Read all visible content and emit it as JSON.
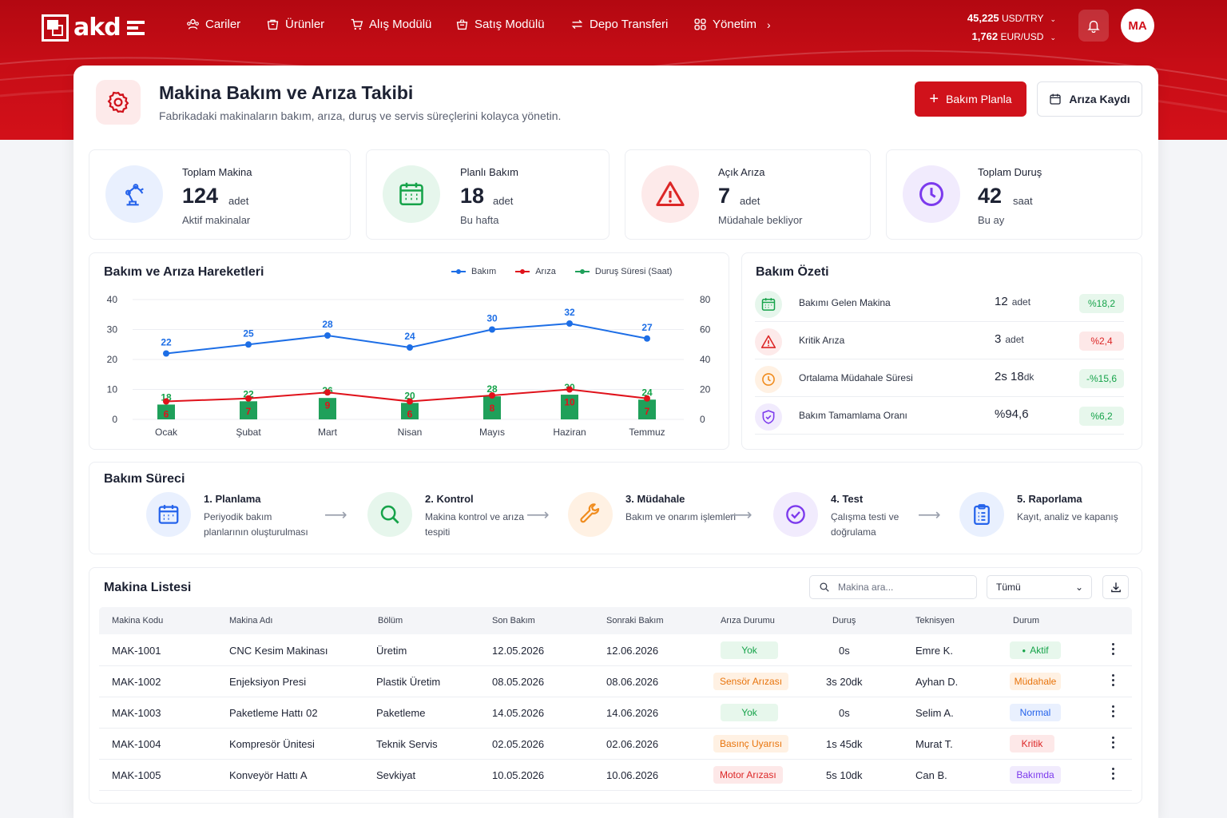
{
  "brand": {
    "logo_text": "akd"
  },
  "nav": [
    {
      "label": "Cariler",
      "icon": "users-icon"
    },
    {
      "label": "Ürünler",
      "icon": "box-icon"
    },
    {
      "label": "Alış Modülü",
      "icon": "cart-icon"
    },
    {
      "label": "Satış Modülü",
      "icon": "basket-icon"
    },
    {
      "label": "Depo Transferi",
      "icon": "transfer-icon"
    },
    {
      "label": "Yönetim",
      "icon": "grid-icon"
    }
  ],
  "currency": {
    "usd_value": "45,225",
    "usd_label": "USD/TRY",
    "eur_value": "1,762",
    "eur_label": "EUR/USD"
  },
  "user": {
    "initials": "MA"
  },
  "page": {
    "title": "Makina Bakım ve Arıza Takibi",
    "subtitle": "Fabrikadaki makinaların bakım, arıza, duruş ve servis süreçlerini kolayca yönetin.",
    "primary_button": "Bakım Planla",
    "secondary_button": "Arıza Kaydı"
  },
  "kpis": [
    {
      "label": "Toplam Makina",
      "value": "124",
      "unit": "adet",
      "sub": "Aktif makinalar",
      "color": "#2563eb",
      "icon": "robot-arm-icon"
    },
    {
      "label": "Planlı Bakım",
      "value": "18",
      "unit": "adet",
      "sub": "Bu hafta",
      "color": "#16a34a",
      "icon": "calendar-icon"
    },
    {
      "label": "Açık Arıza",
      "value": "7",
      "unit": "adet",
      "sub": "Müdahale bekliyor",
      "color": "#dc2626",
      "icon": "warning-icon"
    },
    {
      "label": "Toplam Duruş",
      "value": "42",
      "unit": "saat",
      "sub": "Bu ay",
      "color": "#7c3aed",
      "icon": "clock-icon"
    }
  ],
  "chart_data": {
    "type": "line",
    "title": "Bakım ve Arıza Hareketleri",
    "categories": [
      "Ocak",
      "Şubat",
      "Mart",
      "Nisan",
      "Mayıs",
      "Haziran",
      "Temmuz"
    ],
    "series": [
      {
        "name": "Bakım",
        "type": "line",
        "axis": "left",
        "color": "#1d6ee6",
        "values": [
          22,
          25,
          28,
          24,
          30,
          32,
          27
        ]
      },
      {
        "name": "Arıza",
        "type": "line",
        "axis": "left",
        "color": "#e0121b",
        "values": [
          6,
          7,
          9,
          6,
          8,
          10,
          7
        ]
      },
      {
        "name": "Duruş Süresi (Saat)",
        "type": "bar",
        "axis": "right",
        "color": "#1fa05a",
        "values": [
          18,
          22,
          26,
          20,
          28,
          30,
          24
        ]
      }
    ],
    "y_left": {
      "min": 0,
      "max": 40,
      "ticks": [
        0,
        10,
        20,
        30,
        40
      ]
    },
    "y_right": {
      "min": 0,
      "max": 80,
      "ticks": [
        0,
        20,
        40,
        60,
        80
      ]
    },
    "legend_position": "top-right",
    "grid": true
  },
  "summary": {
    "title": "Bakım Özeti",
    "rows": [
      {
        "label": "Bakımı Gelen Makina",
        "value": "12",
        "unit": "adet",
        "badge": "%18,2",
        "tone": "green",
        "icon": "calendar-icon"
      },
      {
        "label": "Kritik Arıza",
        "value": "3",
        "unit": "adet",
        "badge": "%2,4",
        "tone": "red",
        "icon": "warning-icon"
      },
      {
        "label": "Ortalama Müdahale Süresi",
        "value": "2s 18",
        "unit": "dk",
        "badge": "-%15,6",
        "tone": "green",
        "icon": "clock-icon"
      },
      {
        "label": "Bakım Tamamlama Oranı",
        "value": "%94,6",
        "unit": "",
        "badge": "%6,2",
        "tone": "green",
        "icon": "shield-check-icon"
      }
    ]
  },
  "process": {
    "title": "Bakım Süreci",
    "steps": [
      {
        "title": "1. Planlama",
        "desc": "Periyodik bakım planlarının oluşturulması",
        "icon": "calendar-icon"
      },
      {
        "title": "2. Kontrol",
        "desc": "Makina kontrol ve arıza tespiti",
        "icon": "search-icon"
      },
      {
        "title": "3. Müdahale",
        "desc": "Bakım ve onarım işlemleri",
        "icon": "wrench-icon"
      },
      {
        "title": "4. Test",
        "desc": "Çalışma testi ve doğrulama",
        "icon": "check-circle-icon"
      },
      {
        "title": "5. Raporlama",
        "desc": "Kayıt, analiz ve kapanış",
        "icon": "clipboard-icon"
      }
    ]
  },
  "machines": {
    "title": "Makina Listesi",
    "search_placeholder": "Makina ara...",
    "filter_value": "Tümü",
    "columns": [
      "Makina Kodu",
      "Makina Adı",
      "Bölüm",
      "Son Bakım",
      "Sonraki Bakım",
      "Arıza Durumu",
      "Duruş",
      "Teknisyen",
      "Durum"
    ],
    "rows": [
      {
        "code": "MAK-1001",
        "name": "CNC Kesim Makinası",
        "dept": "Üretim",
        "last": "12.05.2026",
        "next": "12.06.2026",
        "fault": "Yok",
        "fault_tone": "green",
        "downtime": "0s",
        "tech": "Emre K.",
        "status": "Aktif",
        "status_tone": "green"
      },
      {
        "code": "MAK-1002",
        "name": "Enjeksiyon Presi",
        "dept": "Plastik Üretim",
        "last": "08.05.2026",
        "next": "08.06.2026",
        "fault": "Sensör Arızası",
        "fault_tone": "orange",
        "downtime": "3s 20dk",
        "tech": "Ayhan D.",
        "status": "Müdahale",
        "status_tone": "orange"
      },
      {
        "code": "MAK-1003",
        "name": "Paketleme Hattı 02",
        "dept": "Paketleme",
        "last": "14.05.2026",
        "next": "14.06.2026",
        "fault": "Yok",
        "fault_tone": "green",
        "downtime": "0s",
        "tech": "Selim A.",
        "status": "Normal",
        "status_tone": "blue"
      },
      {
        "code": "MAK-1004",
        "name": "Kompresör Ünitesi",
        "dept": "Teknik Servis",
        "last": "02.05.2026",
        "next": "02.06.2026",
        "fault": "Basınç Uyarısı",
        "fault_tone": "orange",
        "downtime": "1s 45dk",
        "tech": "Murat T.",
        "status": "Kritik",
        "status_tone": "red"
      },
      {
        "code": "MAK-1005",
        "name": "Konveyör Hattı A",
        "dept": "Sevkiyat",
        "last": "10.05.2026",
        "next": "10.06.2026",
        "fault": "Motor Arızası",
        "fault_tone": "red",
        "downtime": "5s 10dk",
        "tech": "Can B.",
        "status": "Bakımda",
        "status_tone": "purple"
      }
    ]
  }
}
